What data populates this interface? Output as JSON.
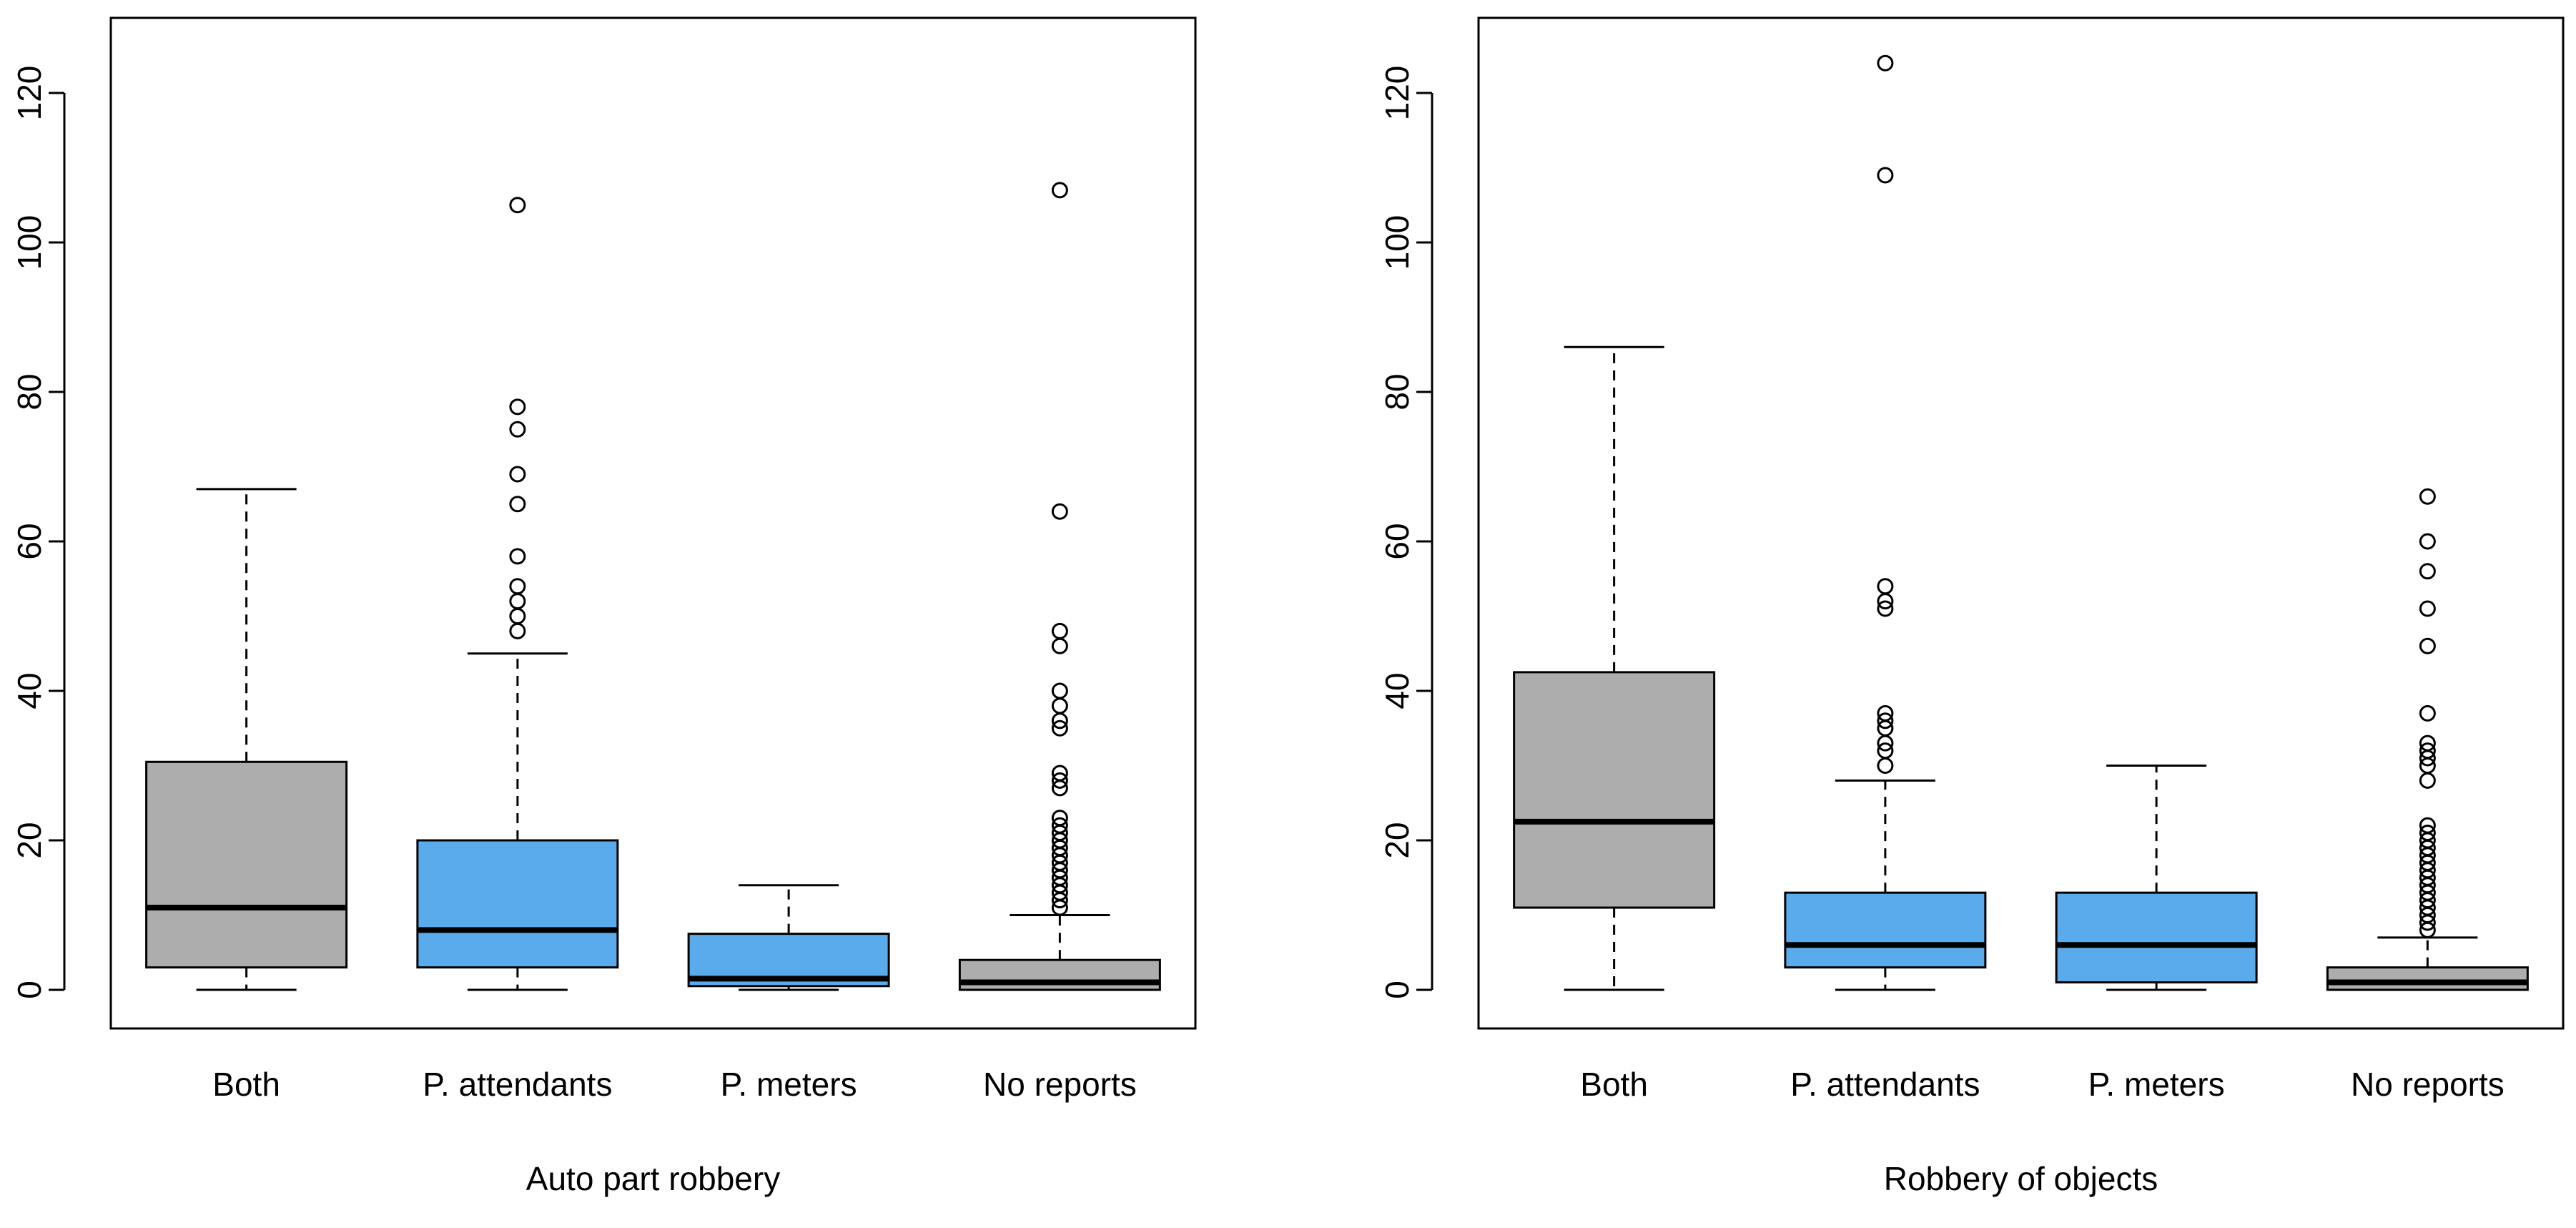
{
  "colors": {
    "gray_box": "#adadad",
    "blue_box": "#5aabec",
    "stroke": "#000000"
  },
  "chart_data": [
    {
      "type": "boxplot",
      "xlabel": "Auto part robbery",
      "ylabel": "",
      "ylim": [
        0,
        128
      ],
      "yticks": [
        0,
        20,
        40,
        60,
        80,
        100,
        120
      ],
      "categories": [
        "Both",
        "P. attendants",
        "P. meters",
        "No reports"
      ],
      "boxes": [
        {
          "category": "Both",
          "color": "gray",
          "whisker_low": 0,
          "q1": 3,
          "median": 11,
          "q3": 30.5,
          "whisker_high": 67,
          "outliers": []
        },
        {
          "category": "P. attendants",
          "color": "blue",
          "whisker_low": 0,
          "q1": 3,
          "median": 8,
          "q3": 20,
          "whisker_high": 45,
          "outliers": [
            48,
            50,
            52,
            54,
            58,
            65,
            69,
            75,
            78,
            105
          ]
        },
        {
          "category": "P. meters",
          "color": "blue",
          "whisker_low": 0,
          "q1": 0.5,
          "median": 1.5,
          "q3": 7.5,
          "whisker_high": 14,
          "outliers": []
        },
        {
          "category": "No reports",
          "color": "gray",
          "whisker_low": 0,
          "q1": 0,
          "median": 1,
          "q3": 4,
          "whisker_high": 10,
          "outliers": [
            11,
            12,
            13,
            14,
            15,
            16,
            17,
            18,
            19,
            20,
            21,
            22,
            23,
            27,
            28,
            29,
            35,
            36,
            38,
            40,
            46,
            48,
            64,
            107
          ]
        }
      ]
    },
    {
      "type": "boxplot",
      "xlabel": "Robbery of objects",
      "ylabel": "",
      "ylim": [
        0,
        128
      ],
      "yticks": [
        0,
        20,
        40,
        60,
        80,
        100,
        120
      ],
      "categories": [
        "Both",
        "P. attendants",
        "P. meters",
        "No reports"
      ],
      "boxes": [
        {
          "category": "Both",
          "color": "gray",
          "whisker_low": 0,
          "q1": 11,
          "median": 22.5,
          "q3": 42.5,
          "whisker_high": 86,
          "outliers": []
        },
        {
          "category": "P. attendants",
          "color": "blue",
          "whisker_low": 0,
          "q1": 3,
          "median": 6,
          "q3": 13,
          "whisker_high": 28,
          "outliers": [
            30,
            32,
            33,
            35,
            36,
            37,
            51,
            52,
            54,
            109,
            124
          ]
        },
        {
          "category": "P. meters",
          "color": "blue",
          "whisker_low": 0,
          "q1": 1,
          "median": 6,
          "q3": 13,
          "whisker_high": 30,
          "outliers": []
        },
        {
          "category": "No reports",
          "color": "gray",
          "whisker_low": 0,
          "q1": 0,
          "median": 1,
          "q3": 3,
          "whisker_high": 7,
          "outliers": [
            8,
            9,
            10,
            11,
            12,
            13,
            14,
            15,
            16,
            17,
            18,
            19,
            20,
            21,
            22,
            28,
            30,
            31,
            32,
            33,
            37,
            46,
            51,
            56,
            60,
            66
          ]
        }
      ]
    }
  ]
}
